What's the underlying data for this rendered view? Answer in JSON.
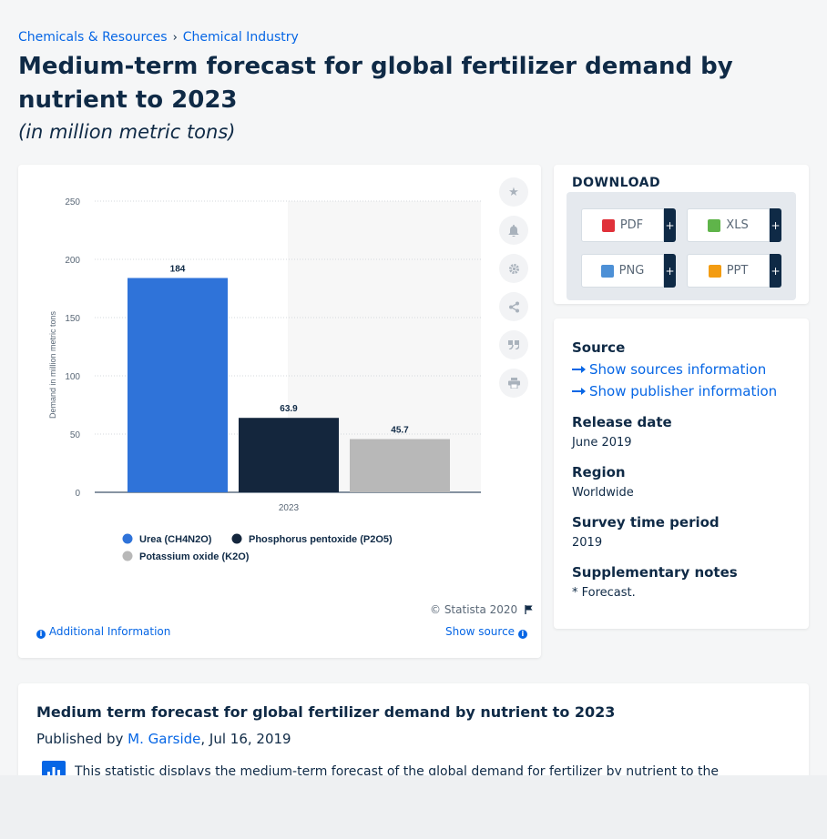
{
  "breadcrumb": {
    "items": [
      "Chemicals & Resources",
      "Chemical Industry"
    ],
    "separator": "›"
  },
  "page": {
    "title": "Medium-term forecast for global fertilizer demand by nutrient to 2023",
    "subtitle": "(in million metric tons)"
  },
  "chart_data": {
    "type": "bar",
    "categories": [
      "2023"
    ],
    "series": [
      {
        "name": "Urea (CH4N2O)",
        "values": [
          184
        ],
        "color": "#2f73d9"
      },
      {
        "name": "Phosphorus pentoxide (P2O5)",
        "values": [
          63.9
        ],
        "color": "#14263d"
      },
      {
        "name": "Potassium oxide (K2O)",
        "values": [
          45.7
        ],
        "color": "#b8b8b8"
      }
    ],
    "data_labels": [
      "184",
      "63.9",
      "45.7"
    ],
    "ylabel": "Demand in million metric tons",
    "xlabel": "",
    "ylim": [
      0,
      250
    ],
    "yticks": [
      "0",
      "50",
      "100",
      "150",
      "200",
      "250"
    ],
    "grid": true,
    "legend_position": "bottom-left"
  },
  "chart_footer": {
    "copyright": "© Statista 2020",
    "additional_info": "Additional Information",
    "show_source": "Show source"
  },
  "tools": [
    "star-icon",
    "bell-icon",
    "gear-icon",
    "share-icon",
    "quote-icon",
    "print-icon"
  ],
  "download": {
    "heading": "DOWNLOAD",
    "buttons": [
      {
        "label": "PDF",
        "icon": "pdf-file-icon",
        "color": "#e0313a"
      },
      {
        "label": "XLS",
        "icon": "xls-file-icon",
        "color": "#5fb44a"
      },
      {
        "label": "PNG",
        "icon": "png-file-icon",
        "color": "#4d90d6"
      },
      {
        "label": "PPT",
        "icon": "ppt-file-icon",
        "color": "#f39c12"
      }
    ],
    "plus": "+"
  },
  "meta": {
    "source_label": "Source",
    "show_sources": "Show sources information",
    "show_publisher": "Show publisher information",
    "release_label": "Release date",
    "release_value": "June 2019",
    "region_label": "Region",
    "region_value": "Worldwide",
    "survey_label": "Survey time period",
    "survey_value": "2019",
    "notes_label": "Supplementary notes",
    "notes_value": "* Forecast."
  },
  "description": {
    "title": "Medium term forecast for global fertilizer demand by nutrient to 2023",
    "published_by": "Published by",
    "author": "M. Garside",
    "date": ", Jul 16, 2019",
    "text": "This statistic displays the medium-term forecast of the global demand for fertilizer by nutrient to the"
  }
}
